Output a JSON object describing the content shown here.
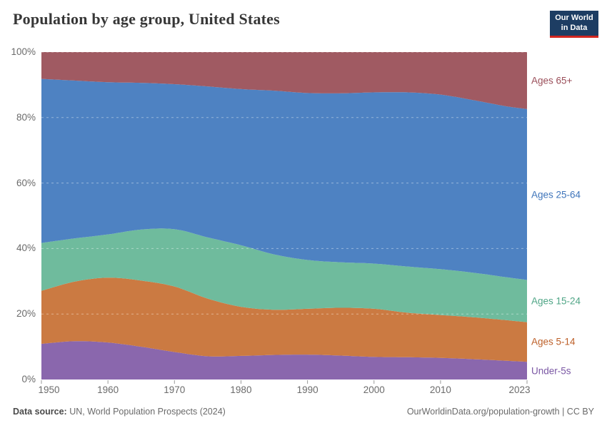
{
  "header": {
    "title": "Population by age group, United States",
    "logo": {
      "line1": "Our World",
      "line2": "in Data",
      "bg_color": "#1d3d63",
      "accent_color": "#d2261f"
    }
  },
  "footer": {
    "datasource_label": "Data source:",
    "datasource_value": " UN, World Population Prospects (2024)",
    "credit": "OurWorldinData.org/population-growth | CC BY"
  },
  "chart_data": {
    "type": "area",
    "stacked": true,
    "title": "Population by age group, United States",
    "y_unit": "%",
    "ylim": [
      0,
      100
    ],
    "grid": "dashed-light-overlay",
    "legend_position": "right-of-plot",
    "x": [
      1950,
      1955,
      1960,
      1965,
      1970,
      1975,
      1980,
      1985,
      1990,
      1995,
      2000,
      2005,
      2010,
      2015,
      2020,
      2023
    ],
    "x_ticks": [
      {
        "v": 1950,
        "label": "1950"
      },
      {
        "v": 1960,
        "label": "1960"
      },
      {
        "v": 1970,
        "label": "1970"
      },
      {
        "v": 1980,
        "label": "1980"
      },
      {
        "v": 1990,
        "label": "1990"
      },
      {
        "v": 2000,
        "label": "2000"
      },
      {
        "v": 2010,
        "label": "2010"
      },
      {
        "v": 2023,
        "label": "2023"
      }
    ],
    "y_ticks": [
      {
        "v": 0,
        "label": "0%"
      },
      {
        "v": 20,
        "label": "20%"
      },
      {
        "v": 40,
        "label": "40%"
      },
      {
        "v": 60,
        "label": "60%"
      },
      {
        "v": 80,
        "label": "80%"
      },
      {
        "v": 100,
        "label": "100%"
      }
    ],
    "series": [
      {
        "name": "Under-5s",
        "color": "#8a67ad",
        "label_color": "#7a57a4",
        "values": [
          10.9,
          11.7,
          11.3,
          10.0,
          8.4,
          7.1,
          7.2,
          7.5,
          7.6,
          7.3,
          6.9,
          6.8,
          6.6,
          6.2,
          5.7,
          5.4
        ]
      },
      {
        "name": "Ages 5-14",
        "color": "#cb7a42",
        "label_color": "#bd5f28",
        "values": [
          16.2,
          18.2,
          19.8,
          20.2,
          20.0,
          17.6,
          15.0,
          13.8,
          14.0,
          14.6,
          14.7,
          13.6,
          13.1,
          12.8,
          12.4,
          12.1
        ]
      },
      {
        "name": "Ages 15-24",
        "color": "#6fbb9d",
        "label_color": "#4fa586",
        "values": [
          14.6,
          13.2,
          13.2,
          15.6,
          17.5,
          18.7,
          18.8,
          16.9,
          14.9,
          13.9,
          13.8,
          14.1,
          14.0,
          13.6,
          13.1,
          12.9
        ]
      },
      {
        "name": "Ages 25-64",
        "color": "#4e82c2",
        "label_color": "#3e74ba",
        "values": [
          50.1,
          48.2,
          46.5,
          44.8,
          44.3,
          46.1,
          47.7,
          50.0,
          51.0,
          51.6,
          52.3,
          53.2,
          53.3,
          52.7,
          52.2,
          52.2
        ]
      },
      {
        "name": "Ages 65+",
        "color": "#a05a62",
        "label_color": "#9a4e59",
        "values": [
          8.2,
          8.7,
          9.2,
          9.4,
          9.8,
          10.5,
          11.3,
          11.8,
          12.5,
          12.6,
          12.3,
          12.3,
          13.0,
          14.7,
          16.6,
          17.4
        ]
      }
    ]
  }
}
